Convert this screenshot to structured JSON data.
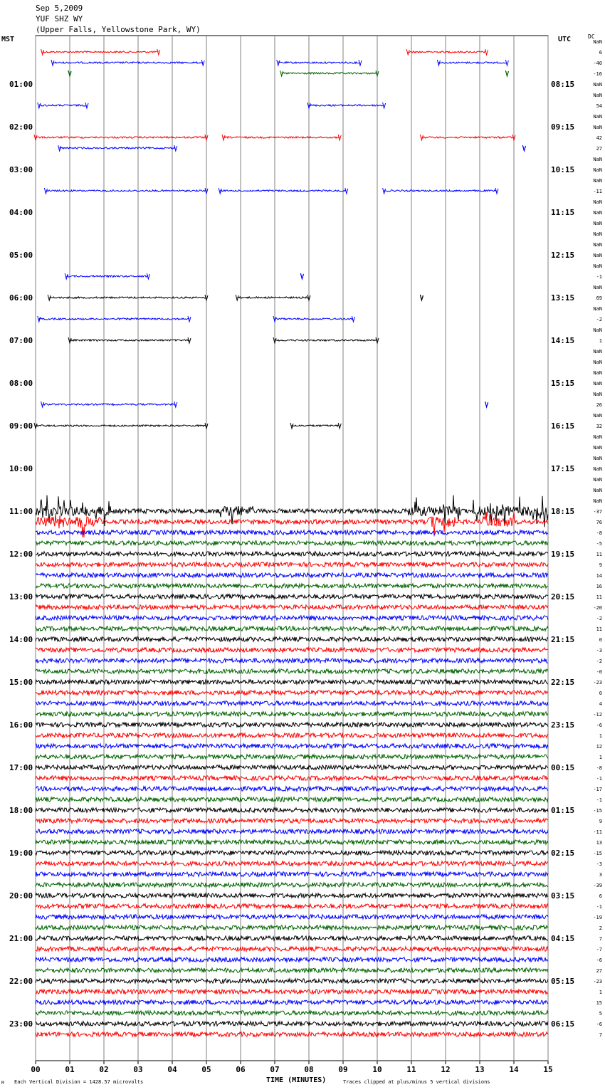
{
  "header": {
    "date": "Sep 5,2009",
    "station": "YUF SHZ WY",
    "location": "(Upper Falls, Yellowstone Park, WY)"
  },
  "left_label": "MST",
  "right_label": "UTC",
  "dc_label": "DC",
  "footer": {
    "scale": "Each Vertical Division = 1428.57 microvolts",
    "clip": "Traces clipped at plus/minus 5 vertical divisions",
    "corner_mark": "M"
  },
  "colors": {
    "black": "#000000",
    "red": "#ff0000",
    "blue": "#0000ff",
    "green": "#006400",
    "grid": "#808080"
  },
  "chart_data": {
    "type": "line",
    "title": "YUF SHZ WY",
    "xlabel": "TIME (MINUTES)",
    "xlim": [
      0,
      15
    ],
    "x_ticks": [
      "00",
      "01",
      "02",
      "03",
      "04",
      "05",
      "06",
      "07",
      "08",
      "09",
      "10",
      "11",
      "12",
      "13",
      "14",
      "15"
    ],
    "left_hour_labels": [
      "01:00",
      "02:00",
      "03:00",
      "04:00",
      "05:00",
      "06:00",
      "07:00",
      "08:00",
      "09:00",
      "10:00",
      "11:00",
      "12:00",
      "13:00",
      "14:00",
      "15:00",
      "16:00",
      "17:00",
      "18:00",
      "19:00",
      "20:00",
      "21:00",
      "22:00",
      "23:00"
    ],
    "right_hour_labels": [
      "08:15",
      "09:15",
      "10:15",
      "11:15",
      "12:15",
      "13:15",
      "14:15",
      "15:15",
      "16:15",
      "17:15",
      "18:15",
      "19:15",
      "20:15",
      "21:15",
      "22:15",
      "23:15",
      "00:15",
      "01:15",
      "02:15",
      "03:15",
      "04:15",
      "05:15",
      "06:15"
    ],
    "row_colors": [
      "black",
      "red",
      "blue",
      "green"
    ],
    "row_dc_values": [
      "NaN",
      "6",
      "-40",
      "-16",
      "NaN",
      "NaN",
      "54",
      "NaN",
      "NaN",
      "42",
      "27",
      "NaN",
      "NaN",
      "NaN",
      "-11",
      "NaN",
      "NaN",
      "NaN",
      "NaN",
      "NaN",
      "NaN",
      "NaN",
      "-1",
      "NaN",
      "69",
      "NaN",
      "-2",
      "NaN",
      "1",
      "NaN",
      "NaN",
      "NaN",
      "NaN",
      "NaN",
      "26",
      "NaN",
      "32",
      "NaN",
      "NaN",
      "NaN",
      "NaN",
      "NaN",
      "NaN",
      "NaN",
      "-37",
      "76",
      "-8",
      "-5",
      "11",
      "9",
      "14",
      "16",
      "11",
      "-20",
      "-2",
      "11",
      "0",
      "-3",
      "-2",
      "-0",
      "-23",
      "0",
      "4",
      "-12",
      "-6",
      "1",
      "12",
      "1",
      "-8",
      "-1",
      "-17",
      "-1",
      "-15",
      "9",
      "-11",
      "13",
      "-15",
      "-3",
      "3",
      "-39",
      "6",
      "-1",
      "-19",
      "2",
      "7",
      "-7",
      "-6",
      "27",
      "-23",
      "1",
      "15",
      "5",
      "-6",
      "7"
    ],
    "gap_segments": [
      {
        "row": 1,
        "color": "red",
        "ranges": [
          [
            0.2,
            3.6
          ],
          [
            10.9,
            13.2
          ]
        ]
      },
      {
        "row": 2,
        "color": "blue",
        "ranges": [
          [
            0.5,
            4.9
          ],
          [
            7.1,
            9.5
          ],
          [
            11.8,
            13.8
          ]
        ]
      },
      {
        "row": 3,
        "color": "green",
        "ranges": [
          [
            1.0,
            1.0
          ],
          [
            7.2,
            10.0
          ],
          [
            13.8,
            13.8
          ]
        ]
      },
      {
        "row": 6,
        "color": "blue",
        "ranges": [
          [
            0.1,
            1.5
          ],
          [
            8.0,
            10.2
          ]
        ]
      },
      {
        "row": 9,
        "color": "red",
        "ranges": [
          [
            0.0,
            5.0
          ],
          [
            5.5,
            8.9
          ],
          [
            11.3,
            14.0
          ]
        ]
      },
      {
        "row": 10,
        "color": "blue",
        "ranges": [
          [
            0.7,
            4.1
          ],
          [
            14.3,
            14.3
          ]
        ]
      },
      {
        "row": 14,
        "color": "blue",
        "ranges": [
          [
            0.3,
            5.0
          ],
          [
            5.4,
            9.1
          ],
          [
            10.2,
            13.5
          ]
        ]
      },
      {
        "row": 22,
        "color": "green",
        "ranges": [
          [
            0.9,
            3.3
          ],
          [
            7.8,
            7.8
          ]
        ]
      },
      {
        "row": 24,
        "color": "red",
        "ranges": [
          [
            0.4,
            5.0
          ],
          [
            5.9,
            8.0
          ],
          [
            11.3,
            11.3
          ]
        ]
      },
      {
        "row": 26,
        "color": "green",
        "ranges": [
          [
            0.1,
            4.5
          ],
          [
            7.0,
            9.3
          ]
        ]
      },
      {
        "row": 28,
        "color": "red",
        "ranges": [
          [
            1.0,
            4.5
          ],
          [
            7.0,
            10.0
          ]
        ]
      },
      {
        "row": 34,
        "color": "green",
        "ranges": [
          [
            0.2,
            4.1
          ],
          [
            13.2,
            13.2
          ]
        ]
      },
      {
        "row": 36,
        "color": "blue",
        "ranges": [
          [
            0.0,
            5.0
          ],
          [
            7.5,
            8.9
          ]
        ]
      }
    ],
    "continuous_from_row": 44,
    "event_bursts": [
      {
        "row": 44,
        "ranges": [
          [
            0,
            2.2
          ],
          [
            5.4,
            6.4
          ],
          [
            10.9,
            12.5
          ],
          [
            12.8,
            15
          ]
        ]
      },
      {
        "row": 45,
        "ranges": [
          [
            0,
            2.0
          ],
          [
            11.5,
            12.3
          ],
          [
            13.1,
            14.0
          ]
        ]
      }
    ]
  }
}
